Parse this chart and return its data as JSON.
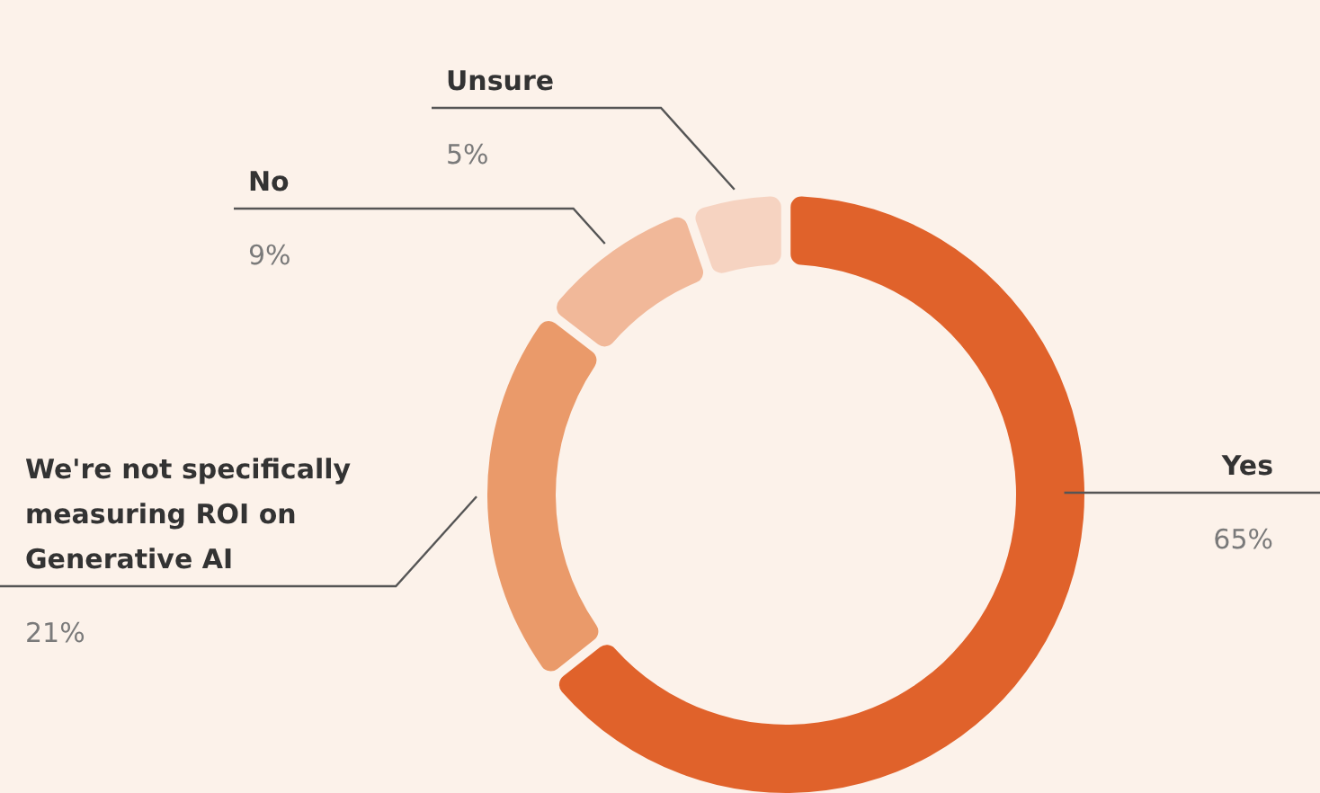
{
  "chart_data": {
    "type": "donut",
    "categories": [
      "Yes",
      "We're not specifically measuring ROI on Generative AI",
      "No",
      "Unsure"
    ],
    "values": [
      65,
      21,
      9,
      5
    ],
    "colors": [
      "#e0622b",
      "#ea9a6a",
      "#f1b899",
      "#f6d3c1"
    ],
    "value_labels": [
      "65%",
      "21%",
      "9%",
      "5%"
    ]
  }
}
